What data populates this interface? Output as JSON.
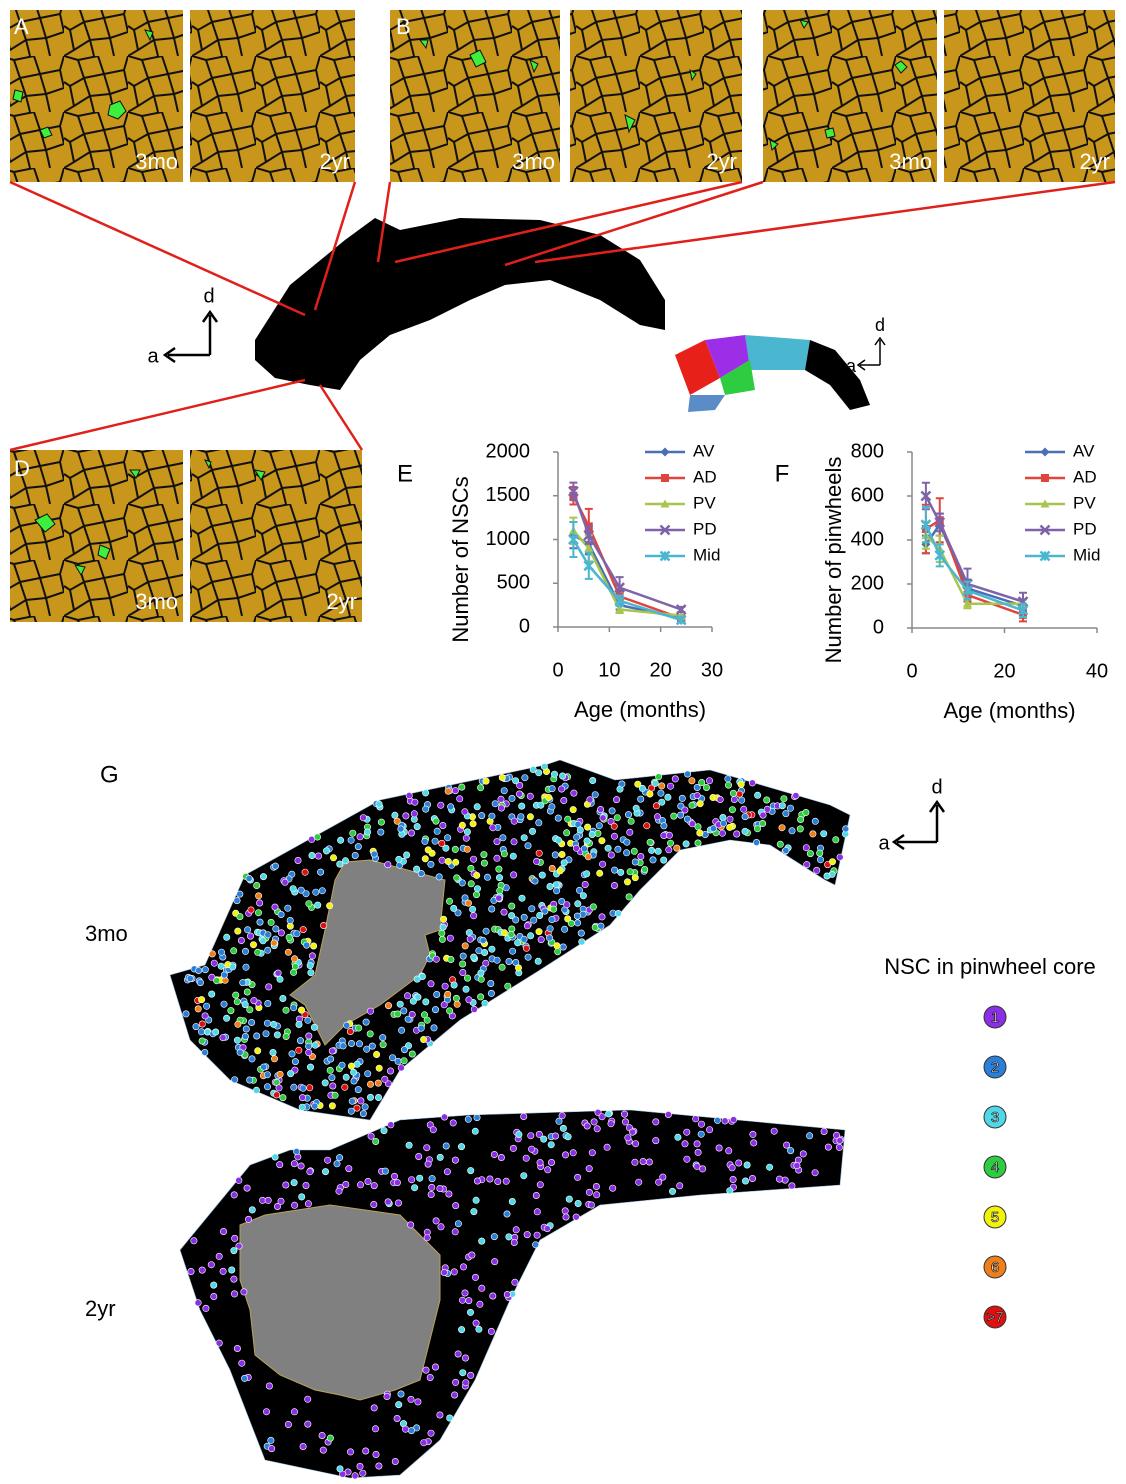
{
  "panel_labels": {
    "A": "A",
    "B": "B",
    "D": "D",
    "G": "G"
  },
  "age_labels": [
    "3mo",
    "2yr"
  ],
  "axis_labels": {
    "anterior": "a",
    "dorsal": "d"
  },
  "chart_data": [
    {
      "type": "line",
      "panel": "E",
      "ylabel": "Number of NSCs",
      "xlabel": "Age (months)",
      "x": [
        3,
        6,
        12,
        24
      ],
      "xlim": [
        0,
        30
      ],
      "xticks": [
        0,
        10,
        20,
        30
      ],
      "ylim": [
        0,
        2000
      ],
      "yticks": [
        0,
        500,
        1000,
        1500,
        2000
      ],
      "series": [
        {
          "name": "AV",
          "color": "#4a6fb5",
          "marker": "diamond",
          "values": [
            1050,
            950,
            250,
            100
          ],
          "errors": [
            150,
            120,
            50,
            30
          ]
        },
        {
          "name": "AD",
          "color": "#e0443e",
          "marker": "square",
          "values": [
            1500,
            1150,
            350,
            100
          ],
          "errors": [
            100,
            200,
            60,
            30
          ]
        },
        {
          "name": "PV",
          "color": "#a8c64e",
          "marker": "triangle",
          "values": [
            1100,
            900,
            200,
            130
          ],
          "errors": [
            150,
            150,
            40,
            40
          ]
        },
        {
          "name": "PD",
          "color": "#7e63a8",
          "marker": "cross",
          "values": [
            1550,
            1050,
            450,
            200
          ],
          "errors": [
            100,
            100,
            120,
            30
          ]
        },
        {
          "name": "Mid",
          "color": "#4bb6cf",
          "marker": "star",
          "values": [
            1000,
            700,
            300,
            80
          ],
          "errors": [
            200,
            150,
            60,
            30
          ]
        }
      ]
    },
    {
      "type": "line",
      "panel": "F",
      "ylabel": "Number of pinwheels",
      "xlabel": "Age (months)",
      "x": [
        3,
        6,
        12,
        24
      ],
      "xlim": [
        0,
        40
      ],
      "xticks": [
        0,
        20,
        40
      ],
      "ylim": [
        0,
        800
      ],
      "yticks": [
        0,
        200,
        400,
        600,
        800
      ],
      "series": [
        {
          "name": "AV",
          "color": "#4a6fb5",
          "marker": "diamond",
          "values": [
            380,
            470,
            180,
            100
          ],
          "errors": [
            40,
            50,
            40,
            30
          ]
        },
        {
          "name": "AD",
          "color": "#e0443e",
          "marker": "square",
          "values": [
            450,
            490,
            150,
            60
          ],
          "errors": [
            110,
            100,
            30,
            30
          ]
        },
        {
          "name": "PV",
          "color": "#a8c64e",
          "marker": "triangle",
          "values": [
            420,
            360,
            110,
            110
          ],
          "errors": [
            60,
            60,
            20,
            20
          ]
        },
        {
          "name": "PD",
          "color": "#7e63a8",
          "marker": "cross",
          "values": [
            600,
            480,
            200,
            120
          ],
          "errors": [
            60,
            40,
            70,
            40
          ]
        },
        {
          "name": "Mid",
          "color": "#4bb6cf",
          "marker": "star",
          "values": [
            470,
            330,
            170,
            80
          ],
          "errors": [
            80,
            50,
            40,
            30
          ]
        }
      ]
    }
  ],
  "panel_g": {
    "rows": [
      "3mo",
      "2yr"
    ],
    "legend_title": "NSC in pinwheel core",
    "legend": [
      {
        "label": "1",
        "color": "#8b2ee6"
      },
      {
        "label": "2",
        "color": "#2a7fd8"
      },
      {
        "label": "3",
        "color": "#4fd8e8"
      },
      {
        "label": "4",
        "color": "#2ecc40"
      },
      {
        "label": "5",
        "color": "#f2f20a"
      },
      {
        "label": "6",
        "color": "#f07f1a"
      },
      {
        "label": ">7",
        "color": "#e01010"
      }
    ]
  }
}
